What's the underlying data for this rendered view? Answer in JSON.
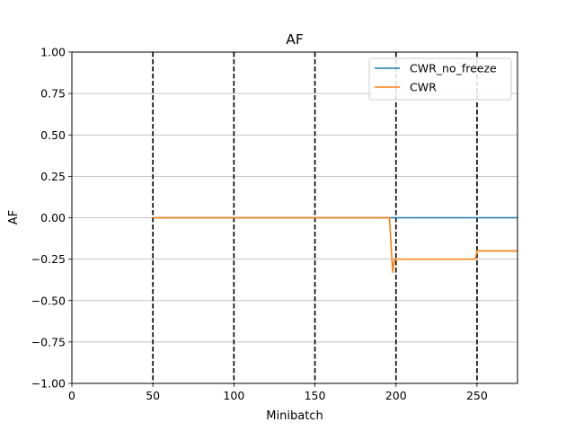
{
  "chart_data": {
    "type": "line",
    "title": "AF",
    "xlabel": "Minibatch",
    "ylabel": "AF",
    "xlim": [
      0,
      275
    ],
    "ylim": [
      -1.0,
      1.0
    ],
    "xticks": [
      0,
      50,
      100,
      150,
      200,
      250
    ],
    "xtick_labels": [
      "0",
      "50",
      "100",
      "150",
      "200",
      "250"
    ],
    "yticks": [
      -1.0,
      -0.75,
      -0.5,
      -0.25,
      0.0,
      0.25,
      0.5,
      0.75,
      1.0
    ],
    "ytick_labels": [
      "−1.00",
      "−0.75",
      "−0.50",
      "−0.25",
      "0.00",
      "0.25",
      "0.50",
      "0.75",
      "1.00"
    ],
    "grid": "y-axis horizontal lines",
    "legend_position": "top-right",
    "vlines": [
      50,
      100,
      150,
      200,
      250
    ],
    "vline_style": "black dashed",
    "series": [
      {
        "name": "CWR_no_freeze",
        "color": "#1f77b4",
        "x": [
          50,
          100,
          150,
          200,
          250,
          275
        ],
        "y": [
          0,
          0,
          0,
          0,
          0,
          0
        ]
      },
      {
        "name": "CWR",
        "color": "#ff7f0e",
        "x": [
          50,
          100,
          150,
          196,
          198,
          199,
          200,
          249,
          250,
          275
        ],
        "y": [
          0,
          0,
          0,
          0,
          -0.33,
          -0.25,
          -0.25,
          -0.25,
          -0.2,
          -0.2
        ]
      }
    ]
  }
}
